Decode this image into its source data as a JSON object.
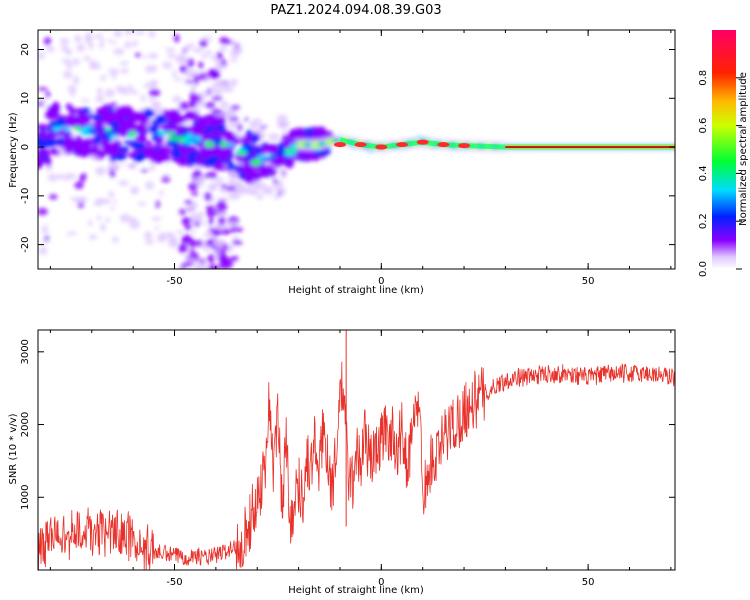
{
  "title": "PAZ1.2024.094.08.39.G03",
  "chart_data": [
    {
      "type": "heatmap",
      "xlabel": "Height of straight line (km)",
      "ylabel": "Frequency (Hz)",
      "xlim": [
        -83,
        71
      ],
      "ylim": [
        -25,
        24
      ],
      "xticks": [
        -50,
        0,
        50
      ],
      "yticks": [
        -20,
        -10,
        0,
        10,
        20
      ],
      "colorbar": {
        "label": "Normalized spectral amplitude",
        "range": [
          0,
          1
        ],
        "ticks": [
          "0.0",
          "0.2",
          "0.4",
          "0.6",
          "0.8"
        ],
        "colormap": "gist_rainbow_r",
        "colors": [
          "#ffffff",
          "#8800ff",
          "#0033ff",
          "#00e5ff",
          "#00ff33",
          "#ffff00",
          "#ff7700",
          "#ff0044"
        ]
      },
      "ridge_center_hz": [
        {
          "x": -80,
          "y": 4
        },
        {
          "x": -70,
          "y": 3
        },
        {
          "x": -60,
          "y": 2.5
        },
        {
          "x": -50,
          "y": 2
        },
        {
          "x": -40,
          "y": 1
        },
        {
          "x": -35,
          "y": -1
        },
        {
          "x": -30,
          "y": -2.5
        },
        {
          "x": -25,
          "y": -2.5
        },
        {
          "x": -20,
          "y": 0.5
        },
        {
          "x": -15,
          "y": 0.5
        },
        {
          "x": -10,
          "y": 1.5
        },
        {
          "x": -5,
          "y": 0.5
        },
        {
          "x": 0,
          "y": 0
        },
        {
          "x": 5,
          "y": 0.5
        },
        {
          "x": 10,
          "y": 1
        },
        {
          "x": 15,
          "y": 0.5
        },
        {
          "x": 20,
          "y": 0.3
        },
        {
          "x": 30,
          "y": 0
        },
        {
          "x": 50,
          "y": 0
        },
        {
          "x": 71,
          "y": 0
        }
      ]
    },
    {
      "type": "line",
      "xlabel": "Height of straight line (km)",
      "ylabel": "SNR (10 * v/v)",
      "xlim": [
        -83,
        71
      ],
      "ylim": [
        0,
        3300
      ],
      "xticks": [
        -50,
        0,
        50
      ],
      "yticks": [
        1000,
        2000,
        3000
      ],
      "series": [
        {
          "color": "#e8312a",
          "x": [
            -83,
            -80,
            -75,
            -72,
            -70,
            -68,
            -65,
            -62,
            -60,
            -58,
            -55,
            -52,
            -50,
            -47,
            -45,
            -42,
            -40,
            -38,
            -36,
            -35,
            -34,
            -33,
            -32,
            -31,
            -30,
            -29,
            -28,
            -27,
            -26,
            -25,
            -24,
            -23,
            -22,
            -21,
            -20,
            -19,
            -18,
            -17,
            -16,
            -15,
            -14,
            -13,
            -12,
            -11,
            -10,
            -9,
            -8,
            -7,
            -6,
            -5,
            -4,
            -3,
            -2,
            -1,
            0,
            1,
            2,
            3,
            4,
            5,
            6,
            7,
            8,
            9,
            10,
            11,
            12,
            13,
            14,
            15,
            16,
            17,
            18,
            19,
            20,
            22,
            24,
            26,
            28,
            30,
            32,
            35,
            40,
            45,
            50,
            55,
            60,
            65,
            71
          ],
          "y": [
            300,
            450,
            500,
            550,
            500,
            520,
            480,
            500,
            420,
            300,
            250,
            220,
            200,
            180,
            200,
            170,
            200,
            250,
            300,
            320,
            400,
            500,
            600,
            800,
            1000,
            1200,
            1500,
            2400,
            1300,
            2200,
            900,
            1800,
            700,
            900,
            1200,
            1000,
            1500,
            1400,
            1800,
            1300,
            2000,
            1600,
            1100,
            1500,
            2500,
            2400,
            1300,
            1200,
            1700,
            1400,
            1900,
            1600,
            1500,
            1700,
            1800,
            1900,
            1900,
            1800,
            1700,
            1900,
            1500,
            1700,
            2000,
            2400,
            1200,
            1100,
            1500,
            1500,
            1600,
            1800,
            1900,
            2000,
            2000,
            2100,
            2200,
            2300,
            2400,
            2450,
            2550,
            2600,
            2650,
            2650,
            2700,
            2700,
            2650,
            2700,
            2700,
            2700,
            2650
          ]
        }
      ]
    }
  ]
}
